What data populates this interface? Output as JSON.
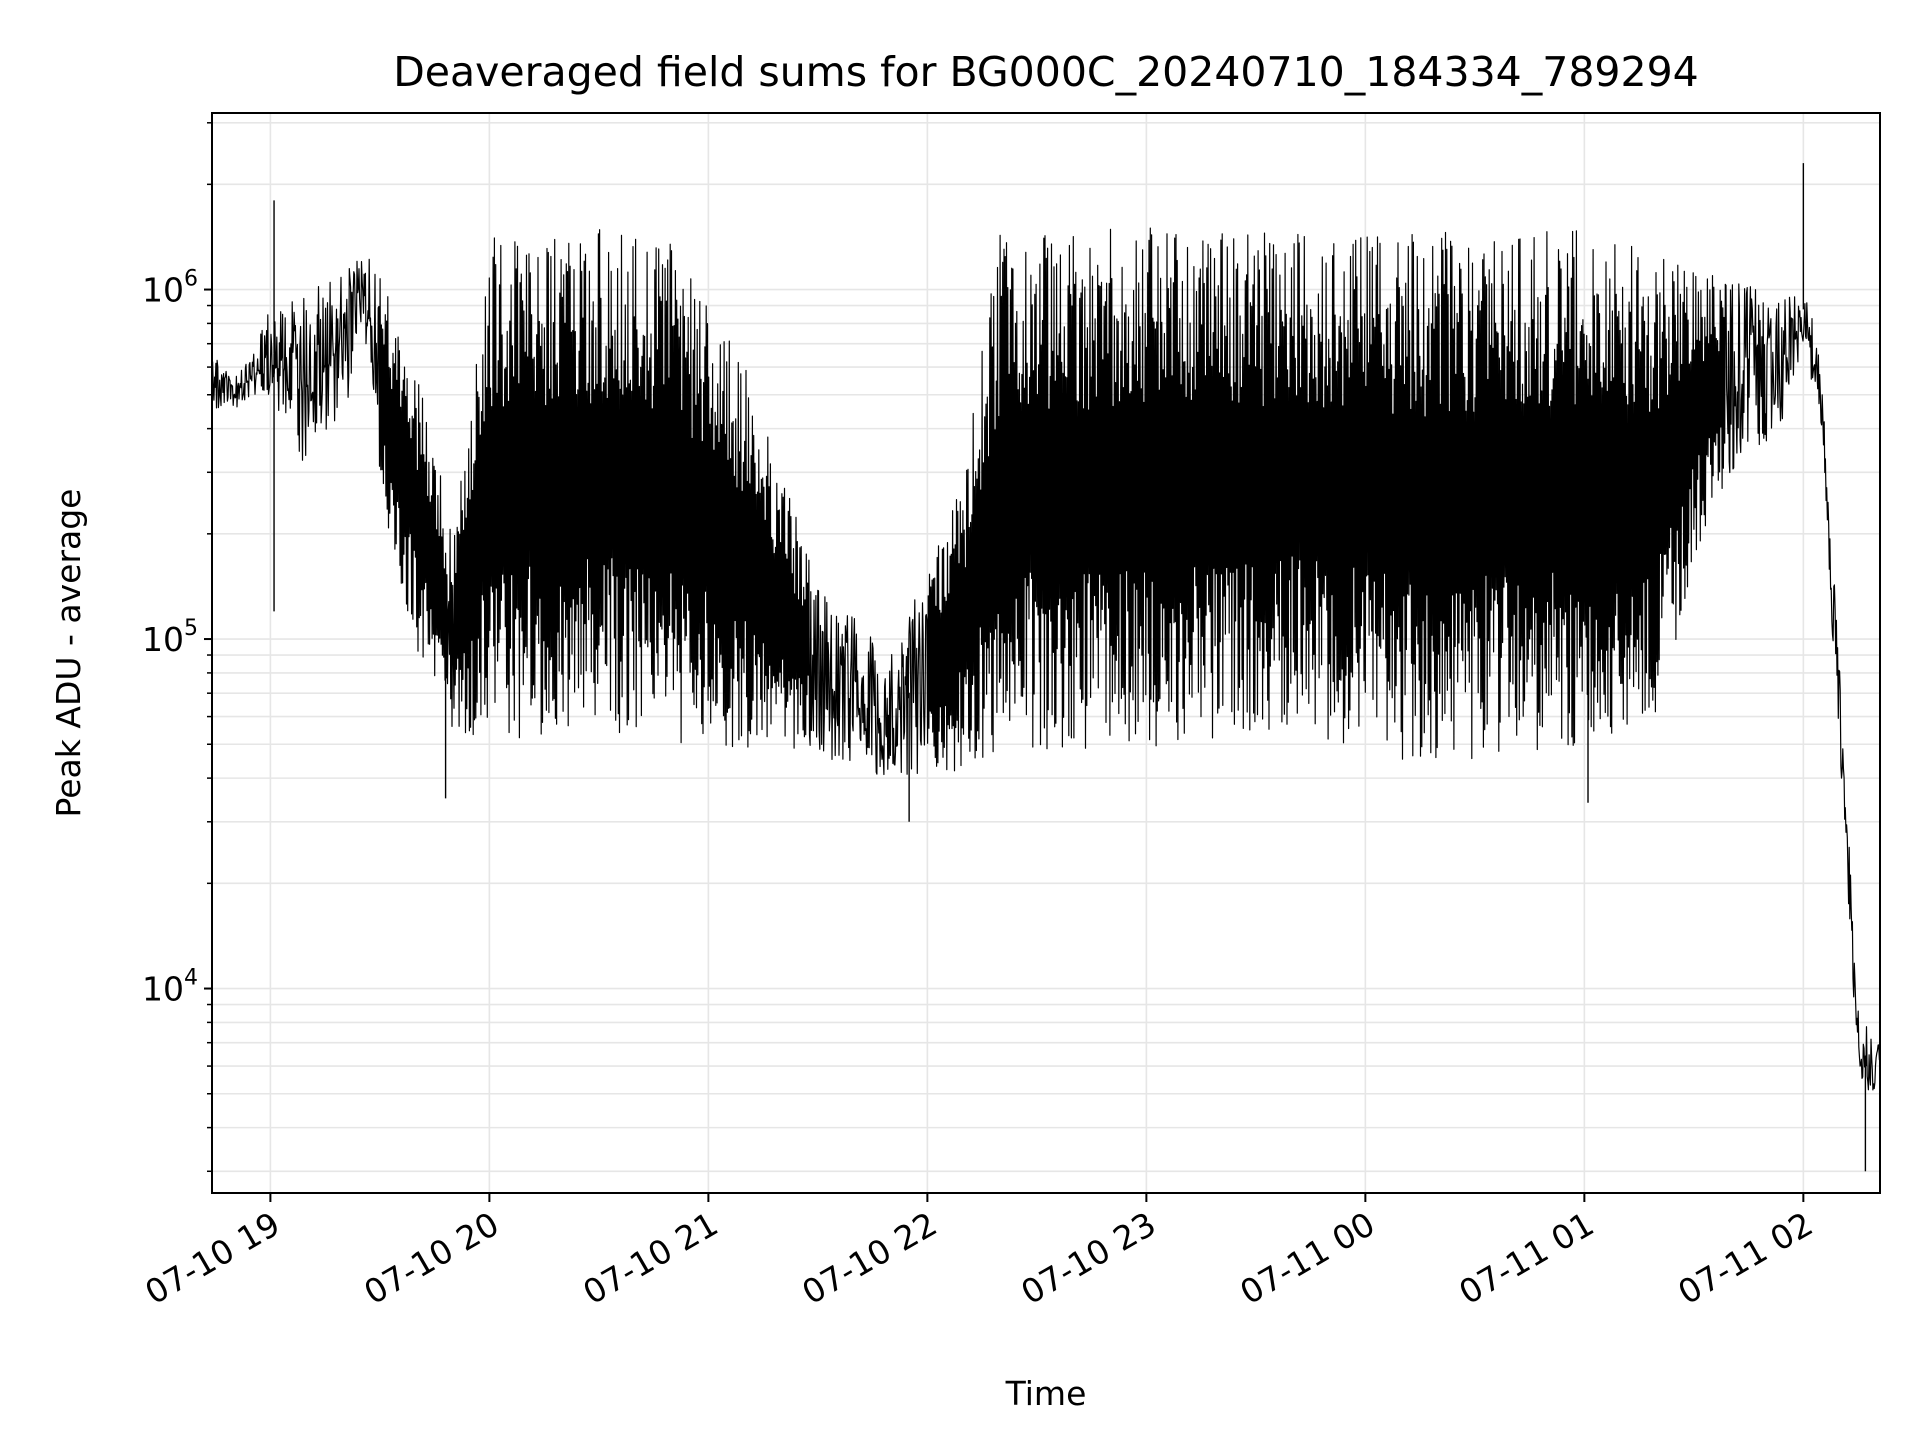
{
  "chart_data": {
    "type": "line",
    "title": "Deaveraged field sums for BG000C_20240710_184334_789294",
    "xlabel": "Time",
    "ylabel": "Peak ADU - average",
    "yscale": "log",
    "xlim": [
      "2024-07-10 18:44",
      "2024-07-11 02:21"
    ],
    "ylim": [
      2600,
      3200000
    ],
    "grid": true,
    "x_ticks": [
      "07-10 19",
      "07-10 20",
      "07-10 21",
      "07-10 22",
      "07-10 23",
      "07-11 00",
      "07-11 01",
      "07-11 02"
    ],
    "y_ticks": [
      {
        "value": 10000,
        "base": "10",
        "exp": "4"
      },
      {
        "value": 100000,
        "base": "10",
        "exp": "5"
      },
      {
        "value": 1000000,
        "base": "10",
        "exp": "6"
      }
    ],
    "line_color": "#000000",
    "series": [
      {
        "envelope": [
          {
            "t": "2024-07-10 18:44",
            "low": 450000,
            "high": 650000
          },
          {
            "t": "2024-07-10 18:50",
            "low": 450000,
            "high": 560000
          },
          {
            "t": "2024-07-10 18:55",
            "low": 500000,
            "high": 650000
          },
          {
            "t": "2024-07-10 19:00",
            "low": 500000,
            "high": 900000
          },
          {
            "t": "2024-07-10 19:10",
            "low": 300000,
            "high": 950000
          },
          {
            "t": "2024-07-10 19:20",
            "low": 450000,
            "high": 1200000
          },
          {
            "t": "2024-07-10 19:27",
            "low": 700000,
            "high": 1300000
          },
          {
            "t": "2024-07-10 19:30",
            "low": 250000,
            "high": 1100000
          },
          {
            "t": "2024-07-10 19:35",
            "low": 150000,
            "high": 800000
          },
          {
            "t": "2024-07-10 19:42",
            "low": 80000,
            "high": 500000
          },
          {
            "t": "2024-07-10 19:50",
            "low": 55000,
            "high": 200000
          },
          {
            "t": "2024-07-10 20:00",
            "low": 50000,
            "high": 1400000
          },
          {
            "t": "2024-07-10 20:30",
            "low": 55000,
            "high": 1500000
          },
          {
            "t": "2024-07-10 20:50",
            "low": 50000,
            "high": 1400000
          },
          {
            "t": "2024-07-10 21:10",
            "low": 48000,
            "high": 600000
          },
          {
            "t": "2024-07-10 21:30",
            "low": 45000,
            "high": 150000
          },
          {
            "t": "2024-07-10 21:50",
            "low": 40000,
            "high": 90000
          },
          {
            "t": "2024-07-10 22:10",
            "low": 42000,
            "high": 300000
          },
          {
            "t": "2024-07-10 22:20",
            "low": 48000,
            "high": 1500000
          },
          {
            "t": "2024-07-10 22:45",
            "low": 48000,
            "high": 1500000
          },
          {
            "t": "2024-07-10 23:10",
            "low": 50000,
            "high": 1500000
          },
          {
            "t": "2024-07-10 23:40",
            "low": 55000,
            "high": 1450000
          },
          {
            "t": "2024-07-11 00:10",
            "low": 45000,
            "high": 1450000
          },
          {
            "t": "2024-07-11 00:40",
            "low": 45000,
            "high": 1500000
          },
          {
            "t": "2024-07-11 01:00",
            "low": 50000,
            "high": 1500000
          },
          {
            "t": "2024-07-11 01:20",
            "low": 60000,
            "high": 1300000
          },
          {
            "t": "2024-07-11 01:35",
            "low": 250000,
            "high": 1100000
          },
          {
            "t": "2024-07-11 01:55",
            "low": 400000,
            "high": 1000000
          },
          {
            "t": "2024-07-11 02:00",
            "low": 700000,
            "high": 1100000
          },
          {
            "t": "2024-07-11 02:05",
            "low": 400000,
            "high": 600000
          },
          {
            "t": "2024-07-11 02:08",
            "low": 100000,
            "high": 200000
          },
          {
            "t": "2024-07-11 02:11",
            "low": 30000,
            "high": 50000
          },
          {
            "t": "2024-07-11 02:15",
            "low": 5000,
            "high": 9000
          },
          {
            "t": "2024-07-11 02:21",
            "low": 5000,
            "high": 7000
          }
        ],
        "spikes": [
          {
            "t": "2024-07-10 19:01",
            "value": 1800000
          },
          {
            "t": "2024-07-10 19:01",
            "value": 120000
          },
          {
            "t": "2024-07-10 19:48",
            "value": 35000
          },
          {
            "t": "2024-07-10 21:55",
            "value": 30000
          },
          {
            "t": "2024-07-11 01:01",
            "value": 34000
          },
          {
            "t": "2024-07-11 02:00",
            "value": 2300000
          },
          {
            "t": "2024-07-11 02:17",
            "value": 3000
          }
        ]
      }
    ]
  }
}
